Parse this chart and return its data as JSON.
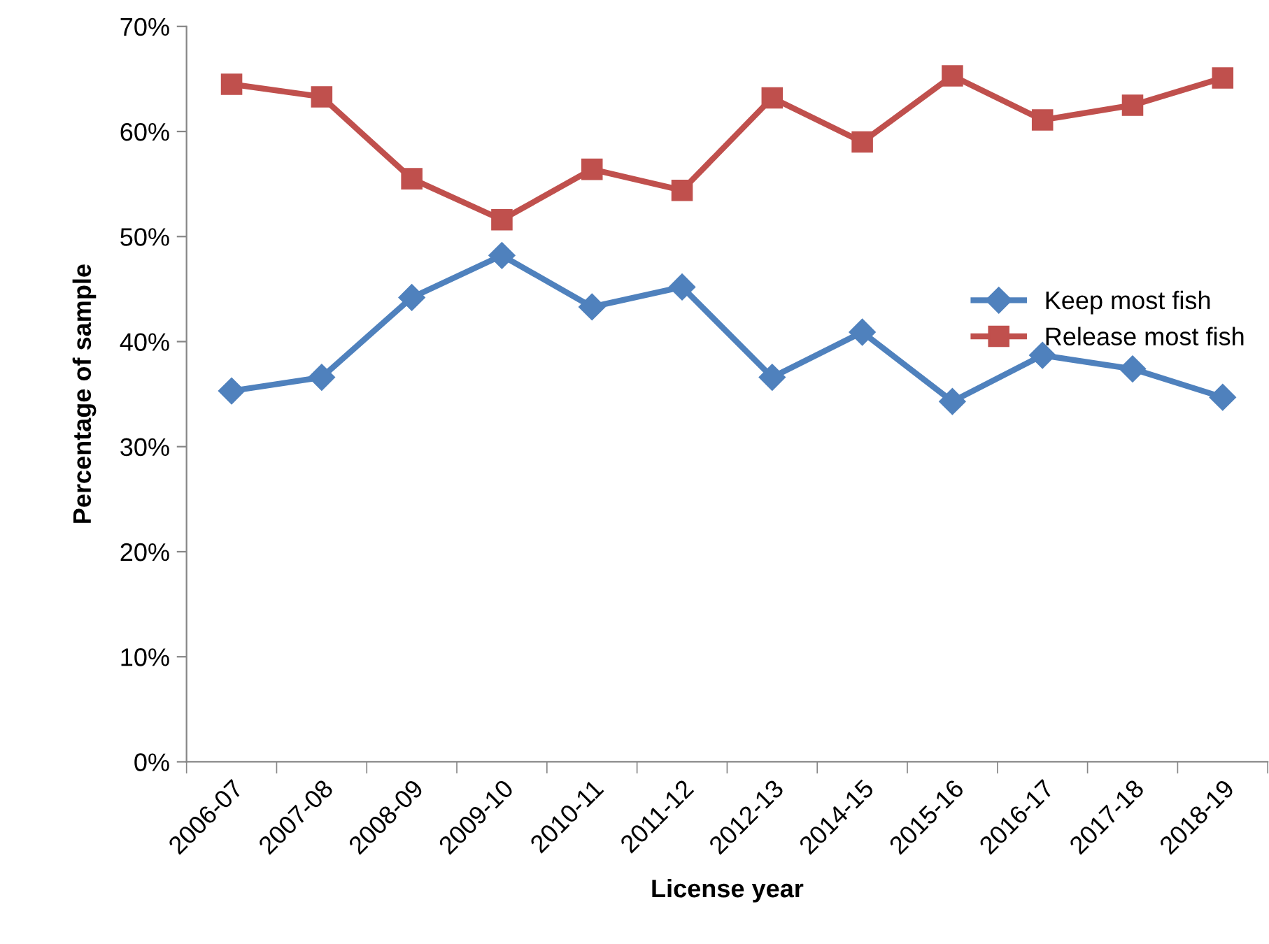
{
  "chart_data": {
    "type": "line",
    "xlabel": "License year",
    "ylabel": "Percentage of sample",
    "categories": [
      "2006-07",
      "2007-08",
      "2008-09",
      "2009-10",
      "2010-11",
      "2011-12",
      "2012-13",
      "2014-15",
      "2015-16",
      "2016-17",
      "2017-18",
      "2018-19"
    ],
    "series": [
      {
        "name": "Keep most fish",
        "color": "#4f81bd",
        "marker": "diamond",
        "values": [
          35.3,
          36.6,
          44.2,
          48.2,
          43.3,
          45.2,
          36.6,
          40.9,
          34.3,
          38.7,
          37.4,
          34.7
        ]
      },
      {
        "name": "Release most fish",
        "color": "#c0504d",
        "marker": "square",
        "values": [
          64.5,
          63.3,
          55.5,
          51.6,
          56.4,
          54.4,
          63.2,
          59.0,
          65.3,
          61.1,
          62.5,
          65.1
        ]
      }
    ],
    "ylim": [
      0,
      70
    ],
    "yticks": [
      {
        "value": 0,
        "label": "0%"
      },
      {
        "value": 10,
        "label": "10%"
      },
      {
        "value": 20,
        "label": "20%"
      },
      {
        "value": 30,
        "label": "30%"
      },
      {
        "value": 40,
        "label": "40%"
      },
      {
        "value": 50,
        "label": "50%"
      },
      {
        "value": 60,
        "label": "60%"
      },
      {
        "value": 70,
        "label": "70%"
      }
    ],
    "legend": "right",
    "line_style": "solid"
  }
}
